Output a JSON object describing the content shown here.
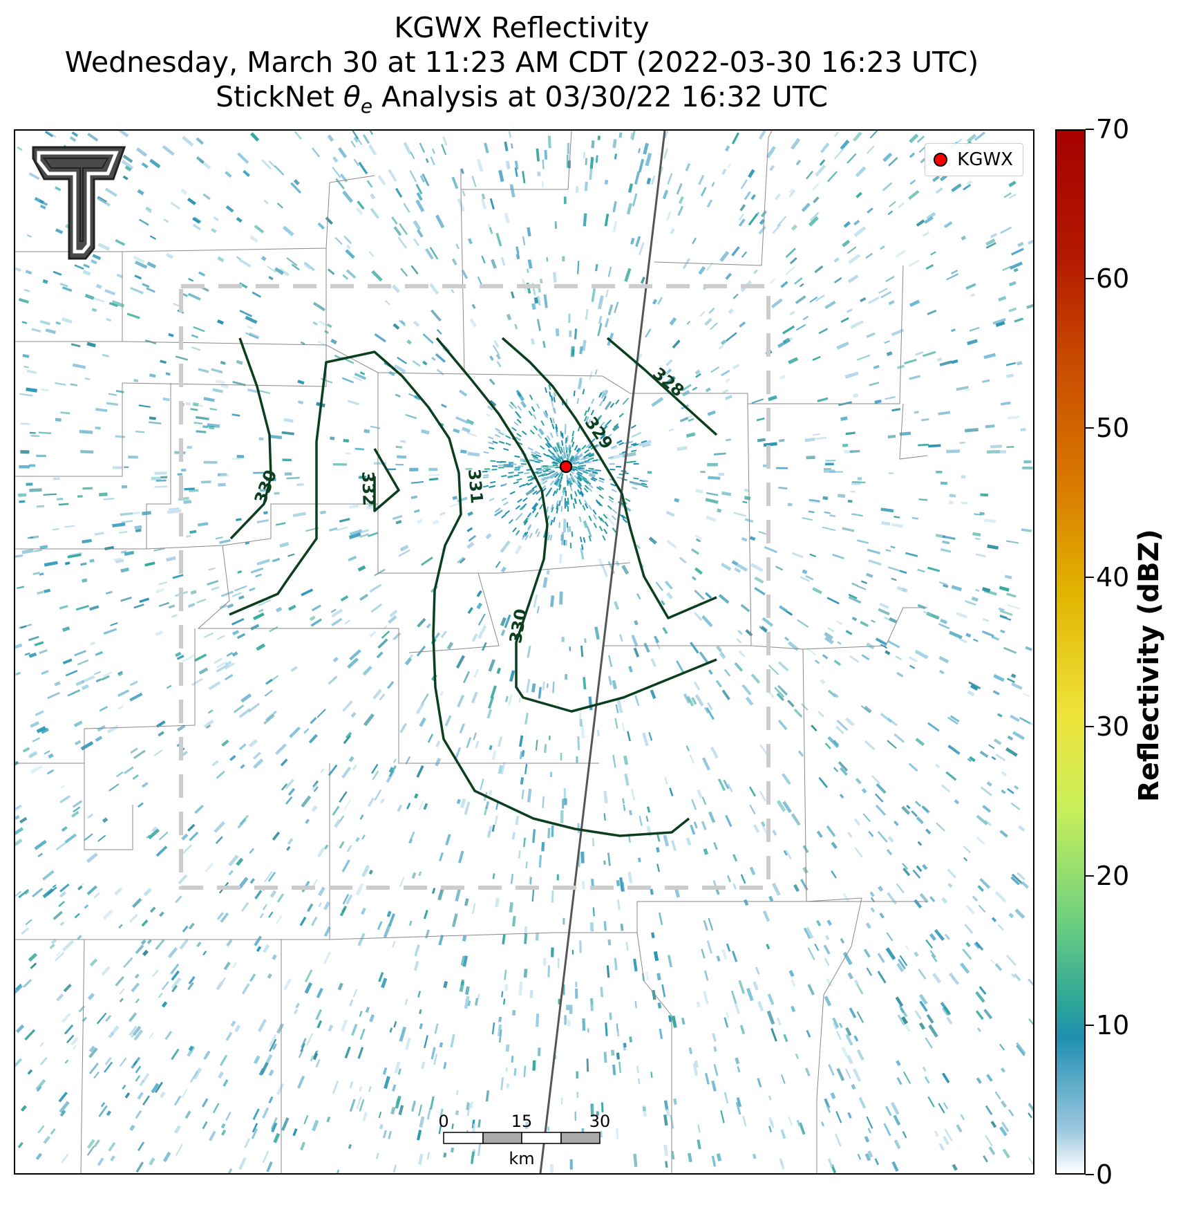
{
  "title": {
    "line1": "KGWX Reflectivity",
    "line2": "Wednesday, March 30 at 11:23 AM CDT (2022-03-30 16:23 UTC)",
    "line3": "StickNet θe Analysis at 03/30/22 16:32 UTC"
  },
  "legend": {
    "label": "KGWX",
    "marker_color": "#ff0000"
  },
  "contour_labels": [
    "330",
    "332",
    "331",
    "330",
    "329",
    "328"
  ],
  "contour_color": "#0b3d1f",
  "scalebar": {
    "ticks": [
      "0",
      "15",
      "30"
    ],
    "unit": "km"
  },
  "colorbar": {
    "title": "Reflectivity (dBZ)",
    "ticks": [
      "70",
      "60",
      "50",
      "40",
      "30",
      "20",
      "10",
      "0"
    ],
    "range": [
      0,
      70
    ]
  },
  "logo": "texas-tech-double-t-logo"
}
